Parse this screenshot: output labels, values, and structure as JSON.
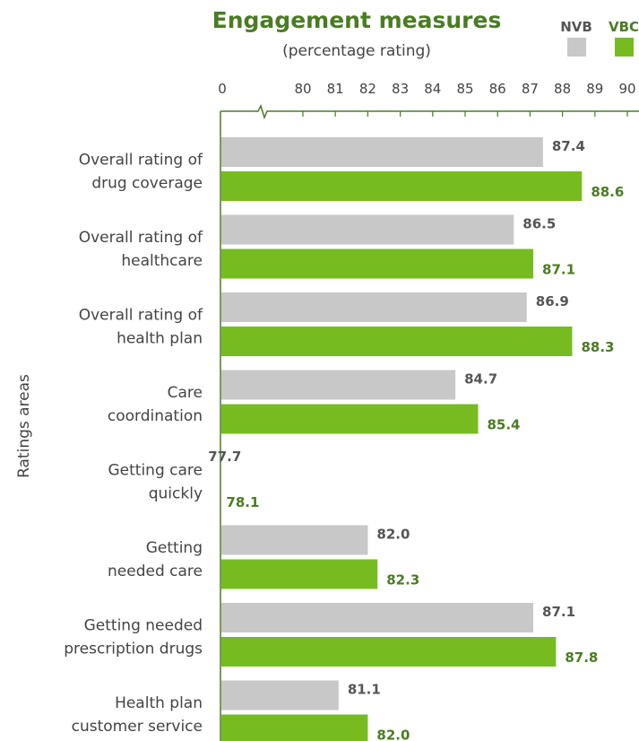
{
  "chart_data": {
    "type": "bar",
    "orientation": "horizontal",
    "title": "Engagement measures",
    "subtitle": "(percentage rating)",
    "ylabel": "Ratings areas",
    "xlabel": "",
    "x_ticks": [
      "0",
      "80",
      "81",
      "82",
      "83",
      "84",
      "85",
      "86",
      "87",
      "88",
      "89",
      "90"
    ],
    "x_axis_break": "between 0 and 80",
    "xlim": [
      76,
      90
    ],
    "grid": false,
    "legend_position": "top-right",
    "categories": [
      [
        "Overall rating of",
        "drug coverage"
      ],
      [
        "Overall rating of",
        "healthcare"
      ],
      [
        "Overall rating of",
        "health plan"
      ],
      [
        "Care",
        "coordination"
      ],
      [
        "Getting care",
        "quickly"
      ],
      [
        "Getting",
        "needed care"
      ],
      [
        "Getting needed",
        "prescription drugs"
      ],
      [
        "Health plan",
        "customer service"
      ]
    ],
    "series": [
      {
        "name": "NVB",
        "color": "#c8c8c8",
        "label_color": "#555555",
        "values": [
          87.4,
          86.5,
          86.9,
          84.7,
          77.7,
          82.0,
          87.1,
          81.1
        ],
        "labels": [
          "87.4",
          "86.5",
          "86.9",
          "84.7",
          "77.7",
          "82.0",
          "87.1",
          "81.1"
        ]
      },
      {
        "name": "VBC",
        "color": "#76bc21",
        "label_color": "#4a7c23",
        "values": [
          88.6,
          87.1,
          88.3,
          85.4,
          78.1,
          82.3,
          87.8,
          82.0
        ],
        "labels": [
          "88.6",
          "87.1",
          "88.3",
          "85.4",
          "78.1",
          "82.3",
          "87.8",
          "82.0"
        ]
      }
    ],
    "colors": {
      "title": "#4a7c23",
      "text": "#444444",
      "axis": "#4a7c23"
    }
  }
}
